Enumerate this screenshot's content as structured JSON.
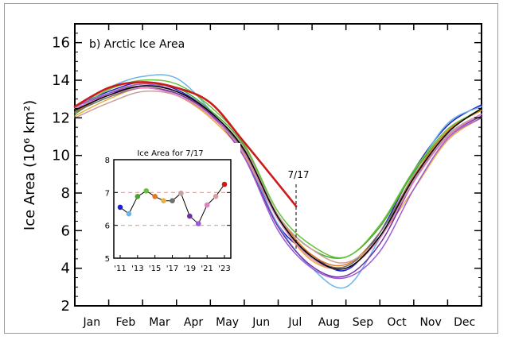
{
  "chart_data": [
    {
      "type": "line",
      "title": "b) Arctic Ice Area",
      "ylabel": "Ice Area (10⁶ km²)",
      "xlabel": "",
      "ylim": [
        2,
        17
      ],
      "yticks": [
        2,
        4,
        6,
        8,
        10,
        12,
        14,
        16
      ],
      "xlim": [
        0,
        12
      ],
      "month_labels": [
        "Jan",
        "Feb",
        "Mar",
        "Apr",
        "May",
        "Jun",
        "Jul",
        "Aug",
        "Sep",
        "Oct",
        "Nov",
        "Dec"
      ],
      "marker": {
        "label": "7/17",
        "x": 6.53
      },
      "grid": false,
      "series": [
        {
          "year": "2011",
          "color": "#1f1fc8",
          "values": [
            12.6,
            13.4,
            13.9,
            13.5,
            12.3,
            10.2,
            6.3,
            4.7,
            3.9,
            5.9,
            9.2,
            11.6,
            12.7
          ]
        },
        {
          "year": "2012",
          "color": "#6eb4e6",
          "values": [
            12.5,
            13.6,
            14.2,
            14.1,
            12.4,
            10.0,
            6.3,
            4.0,
            3.0,
            5.6,
            9.0,
            11.7,
            12.6
          ]
        },
        {
          "year": "2013",
          "color": "#4aa72e",
          "values": [
            12.2,
            13.3,
            13.7,
            13.6,
            12.4,
            10.5,
            6.8,
            5.0,
            4.6,
            6.2,
            9.1,
            11.3,
            12.5
          ]
        },
        {
          "year": "2014",
          "color": "#64c23c",
          "values": [
            12.4,
            13.5,
            14.0,
            13.8,
            12.6,
            10.6,
            7.0,
            5.2,
            4.6,
            6.3,
            9.2,
            11.4,
            12.4
          ]
        },
        {
          "year": "2015",
          "color": "#e2781e",
          "values": [
            12.3,
            13.3,
            13.8,
            13.4,
            12.3,
            10.2,
            6.8,
            4.7,
            4.2,
            5.9,
            8.9,
            11.3,
            12.4
          ]
        },
        {
          "year": "2016",
          "color": "#e8b040",
          "values": [
            12.1,
            13.0,
            13.6,
            13.2,
            12.0,
            10.0,
            6.6,
            4.4,
            4.1,
            5.7,
            8.2,
            10.8,
            12.0
          ]
        },
        {
          "year": "2017",
          "color": "#707070",
          "values": [
            12.3,
            13.1,
            13.6,
            13.3,
            12.2,
            10.2,
            6.6,
            4.6,
            4.1,
            5.9,
            8.8,
            11.1,
            12.2
          ]
        },
        {
          "year": "2018",
          "color": "#c8a0a0",
          "values": [
            12.0,
            12.8,
            13.4,
            13.2,
            12.2,
            10.4,
            6.8,
            5.0,
            4.3,
            5.7,
            8.7,
            11.1,
            12.2
          ]
        },
        {
          "year": "2019",
          "color": "#7030a0",
          "values": [
            12.4,
            13.3,
            13.6,
            13.3,
            12.2,
            9.9,
            6.2,
            4.1,
            3.6,
            5.3,
            8.6,
            11.0,
            12.1
          ]
        },
        {
          "year": "2020",
          "color": "#9c5ad8",
          "values": [
            12.6,
            13.3,
            13.8,
            13.4,
            12.3,
            9.9,
            6.0,
            4.0,
            3.5,
            4.9,
            8.2,
            10.9,
            12.0
          ]
        },
        {
          "year": "2021",
          "color": "#e080c0",
          "values": [
            12.5,
            13.2,
            13.6,
            13.2,
            12.1,
            10.1,
            6.6,
            4.5,
            4.0,
            5.6,
            8.6,
            11.0,
            12.2
          ]
        },
        {
          "year": "2022",
          "color": "#000000",
          "values": [
            12.4,
            13.2,
            13.7,
            13.4,
            12.3,
            10.3,
            6.7,
            4.6,
            4.0,
            5.7,
            8.8,
            11.2,
            12.5
          ]
        },
        {
          "year": "2023",
          "color": "#cc1a1a",
          "values": [
            12.6,
            13.6,
            13.9,
            13.6,
            12.8,
            10.7,
            7.3,
            null,
            null,
            null,
            null,
            null,
            null
          ]
        }
      ]
    },
    {
      "type": "scatter",
      "title": "Ice Area for 7/17",
      "ylim": [
        5,
        8
      ],
      "yticks": [
        5,
        6,
        7,
        8
      ],
      "x_ticks": [
        "'11",
        "'13",
        "'15",
        "'17",
        "'19",
        "'21",
        "'23"
      ],
      "x": [
        2011,
        2012,
        2013,
        2014,
        2015,
        2016,
        2017,
        2018,
        2019,
        2020,
        2021,
        2022,
        2023
      ],
      "values": [
        6.55,
        6.35,
        6.88,
        7.05,
        6.88,
        6.75,
        6.75,
        6.98,
        6.28,
        6.05,
        6.62,
        6.88,
        7.25
      ],
      "colors": [
        "#1f1fc8",
        "#6eb4e6",
        "#4aa72e",
        "#64c23c",
        "#e2781e",
        "#e8b040",
        "#707070",
        "#c8a0a0",
        "#7030a0",
        "#9c5ad8",
        "#e080c0",
        "#d4a0a0",
        "#cc1a1a"
      ],
      "reference_lines": [
        7,
        6
      ],
      "reference_color": "#d9a0a0"
    }
  ]
}
